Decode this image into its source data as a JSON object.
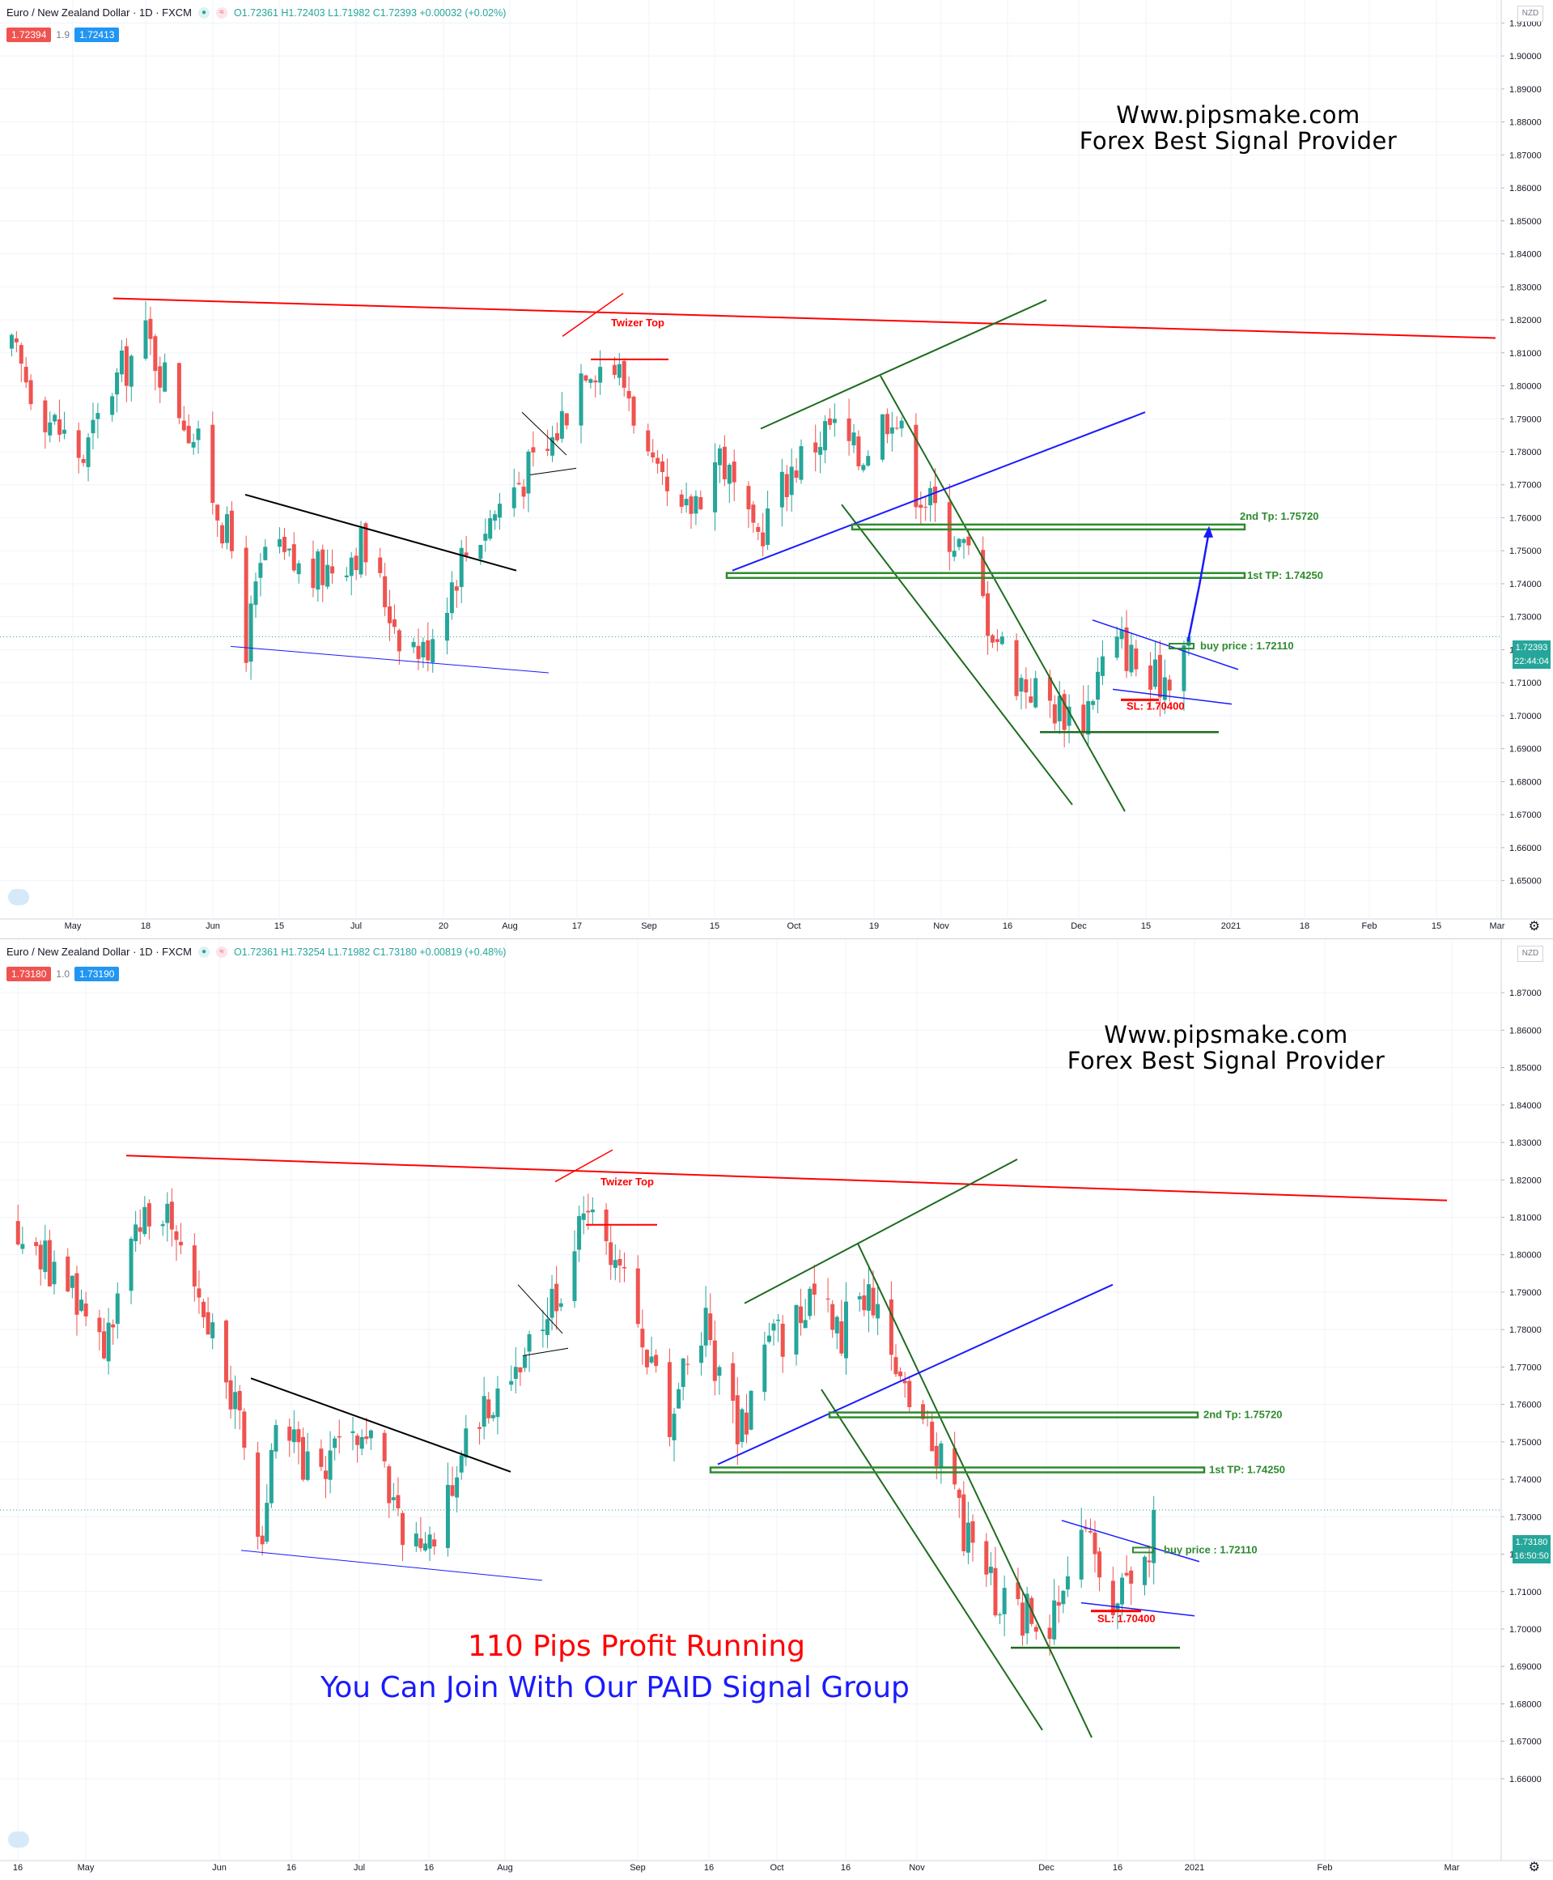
{
  "colors": {
    "up": "#26a69a",
    "down": "#ef5350",
    "resistance": "#ff0000",
    "channel": "#1f6b1f",
    "trend_blue": "#1a1aff",
    "zone": "#2e8b2e",
    "sl": "#ff0000"
  },
  "panels": [
    {
      "symbol": "Euro / New Zealand Dollar · 1D · FXCM",
      "ohlc": "O1.72361 H1.72403 L1.71982 C1.72393 +0.00032 (+0.02%)",
      "bid": "1.72394",
      "spread": "1.9",
      "ask": "1.72413",
      "currency": "NZD",
      "last_price": "1.72393",
      "countdown": "22:44:04",
      "brand_line1": "Www.pipsmake.com",
      "brand_line2": "Forex Best Signal Provider",
      "x_labels": [
        "May",
        "18",
        "Jun",
        "15",
        "Jul",
        "20",
        "Aug",
        "17",
        "Sep",
        "15",
        "Oct",
        "19",
        "Nov",
        "16",
        "Dec",
        "15",
        "2021",
        "18",
        "Feb",
        "15",
        "Mar"
      ],
      "annotations": {
        "twizer": "Twizer Top",
        "tp2": "2nd Tp: 1.75720",
        "tp1": "1st TP: 1.74250",
        "buy": "buy price : 1.72110",
        "sl": "SL: 1.70400"
      }
    },
    {
      "symbol": "Euro / New Zealand Dollar · 1D · FXCM",
      "ohlc": "O1.72361 H1.73254 L1.71982 C1.73180 +0.00819 (+0.48%)",
      "bid": "1.73180",
      "spread": "1.0",
      "ask": "1.73190",
      "currency": "NZD",
      "last_price": "1.73180",
      "countdown": "16:50:50",
      "brand_line1": "Www.pipsmake.com",
      "brand_line2": "Forex Best Signal Provider",
      "x_labels": [
        "16",
        "May",
        "Jun",
        "16",
        "Jul",
        "16",
        "Aug",
        "Sep",
        "16",
        "Oct",
        "16",
        "Nov",
        "Dec",
        "16",
        "2021",
        "Feb",
        "Mar"
      ],
      "annotations": {
        "twizer": "Twizer Top",
        "tp2": "2nd Tp: 1.75720",
        "tp1": "1st TP: 1.74250",
        "buy": "buy price : 1.72110",
        "sl": "SL: 1.70400"
      },
      "promo_line1": "110 Pips Profit Running",
      "promo_line2": "You Can Join With Our PAID Signal Group"
    }
  ],
  "chart_data": [
    {
      "type": "candlestick",
      "title": "Euro / New Zealand Dollar · 1D · FXCM",
      "ylim": [
        1.645,
        1.915
      ],
      "y_ticks": [
        1.65,
        1.66,
        1.67,
        1.68,
        1.69,
        1.7,
        1.71,
        1.72,
        1.73,
        1.74,
        1.75,
        1.76,
        1.77,
        1.78,
        1.79,
        1.8,
        1.81,
        1.82,
        1.83,
        1.84,
        1.85,
        1.86,
        1.87,
        1.88,
        1.89,
        1.9,
        1.91
      ],
      "levels": {
        "tp2": 1.7572,
        "tp1": 1.7425,
        "buy": 1.7211,
        "sl": 1.704,
        "last": 1.72393
      },
      "close_anchors": [
        {
          "date": "2020-04-20",
          "close": 1.81
        },
        {
          "date": "2020-04-28",
          "close": 1.79
        },
        {
          "date": "2020-05-05",
          "close": 1.778
        },
        {
          "date": "2020-05-11",
          "close": 1.8
        },
        {
          "date": "2020-05-18",
          "close": 1.815
        },
        {
          "date": "2020-05-28",
          "close": 1.785
        },
        {
          "date": "2020-06-05",
          "close": 1.75
        },
        {
          "date": "2020-06-08",
          "close": 1.722
        },
        {
          "date": "2020-06-12",
          "close": 1.75
        },
        {
          "date": "2020-06-22",
          "close": 1.742
        },
        {
          "date": "2020-07-02",
          "close": 1.752
        },
        {
          "date": "2020-07-10",
          "close": 1.726
        },
        {
          "date": "2020-07-15",
          "close": 1.719
        },
        {
          "date": "2020-07-23",
          "close": 1.748
        },
        {
          "date": "2020-08-03",
          "close": 1.77
        },
        {
          "date": "2020-08-10",
          "close": 1.78
        },
        {
          "date": "2020-08-18",
          "close": 1.808
        },
        {
          "date": "2020-08-24",
          "close": 1.806
        },
        {
          "date": "2020-08-27",
          "close": 1.798
        },
        {
          "date": "2020-09-01",
          "close": 1.772
        },
        {
          "date": "2020-09-07",
          "close": 1.758
        },
        {
          "date": "2020-09-15",
          "close": 1.78
        },
        {
          "date": "2020-09-22",
          "close": 1.752
        },
        {
          "date": "2020-09-30",
          "close": 1.775
        },
        {
          "date": "2020-10-08",
          "close": 1.788
        },
        {
          "date": "2020-10-14",
          "close": 1.778
        },
        {
          "date": "2020-10-21",
          "close": 1.794
        },
        {
          "date": "2020-10-26",
          "close": 1.77
        },
        {
          "date": "2020-11-02",
          "close": 1.756
        },
        {
          "date": "2020-11-06",
          "close": 1.748
        },
        {
          "date": "2020-11-10",
          "close": 1.73
        },
        {
          "date": "2020-11-16",
          "close": 1.712
        },
        {
          "date": "2020-11-24",
          "close": 1.703
        },
        {
          "date": "2020-11-30",
          "close": 1.7
        },
        {
          "date": "2020-12-04",
          "close": 1.716
        },
        {
          "date": "2020-12-08",
          "close": 1.722
        },
        {
          "date": "2020-12-14",
          "close": 1.709
        },
        {
          "date": "2020-12-18",
          "close": 1.714
        },
        {
          "date": "2020-12-22",
          "close": 1.7239
        }
      ]
    },
    {
      "type": "candlestick",
      "title": "Euro / New Zealand Dollar · 1D · FXCM",
      "ylim": [
        1.655,
        1.875
      ],
      "y_ticks": [
        1.66,
        1.67,
        1.68,
        1.69,
        1.7,
        1.71,
        1.72,
        1.73,
        1.74,
        1.75,
        1.76,
        1.77,
        1.78,
        1.79,
        1.8,
        1.81,
        1.82,
        1.83,
        1.84,
        1.85,
        1.86,
        1.87
      ],
      "levels": {
        "tp2": 1.7572,
        "tp1": 1.7425,
        "buy": 1.7211,
        "sl": 1.704,
        "last": 1.7318
      },
      "close_anchors": [
        {
          "date": "2020-04-16",
          "close": 1.808
        },
        {
          "date": "2020-04-28",
          "close": 1.79
        },
        {
          "date": "2020-05-05",
          "close": 1.778
        },
        {
          "date": "2020-05-11",
          "close": 1.8
        },
        {
          "date": "2020-05-18",
          "close": 1.815
        },
        {
          "date": "2020-05-28",
          "close": 1.785
        },
        {
          "date": "2020-06-05",
          "close": 1.75
        },
        {
          "date": "2020-06-08",
          "close": 1.722
        },
        {
          "date": "2020-06-12",
          "close": 1.75
        },
        {
          "date": "2020-06-22",
          "close": 1.742
        },
        {
          "date": "2020-07-02",
          "close": 1.752
        },
        {
          "date": "2020-07-10",
          "close": 1.726
        },
        {
          "date": "2020-07-15",
          "close": 1.719
        },
        {
          "date": "2020-07-23",
          "close": 1.748
        },
        {
          "date": "2020-08-03",
          "close": 1.77
        },
        {
          "date": "2020-08-10",
          "close": 1.78
        },
        {
          "date": "2020-08-18",
          "close": 1.808
        },
        {
          "date": "2020-08-24",
          "close": 1.806
        },
        {
          "date": "2020-08-27",
          "close": 1.798
        },
        {
          "date": "2020-09-01",
          "close": 1.772
        },
        {
          "date": "2020-09-07",
          "close": 1.758
        },
        {
          "date": "2020-09-15",
          "close": 1.78
        },
        {
          "date": "2020-09-22",
          "close": 1.752
        },
        {
          "date": "2020-09-30",
          "close": 1.775
        },
        {
          "date": "2020-10-08",
          "close": 1.788
        },
        {
          "date": "2020-10-14",
          "close": 1.778
        },
        {
          "date": "2020-10-21",
          "close": 1.794
        },
        {
          "date": "2020-10-26",
          "close": 1.77
        },
        {
          "date": "2020-11-02",
          "close": 1.756
        },
        {
          "date": "2020-11-06",
          "close": 1.748
        },
        {
          "date": "2020-11-10",
          "close": 1.73
        },
        {
          "date": "2020-11-16",
          "close": 1.712
        },
        {
          "date": "2020-11-24",
          "close": 1.703
        },
        {
          "date": "2020-11-30",
          "close": 1.7
        },
        {
          "date": "2020-12-04",
          "close": 1.716
        },
        {
          "date": "2020-12-08",
          "close": 1.722
        },
        {
          "date": "2020-12-14",
          "close": 1.709
        },
        {
          "date": "2020-12-18",
          "close": 1.714
        },
        {
          "date": "2020-12-22",
          "close": 1.7239
        },
        {
          "date": "2020-12-23",
          "close": 1.7318
        }
      ]
    }
  ]
}
